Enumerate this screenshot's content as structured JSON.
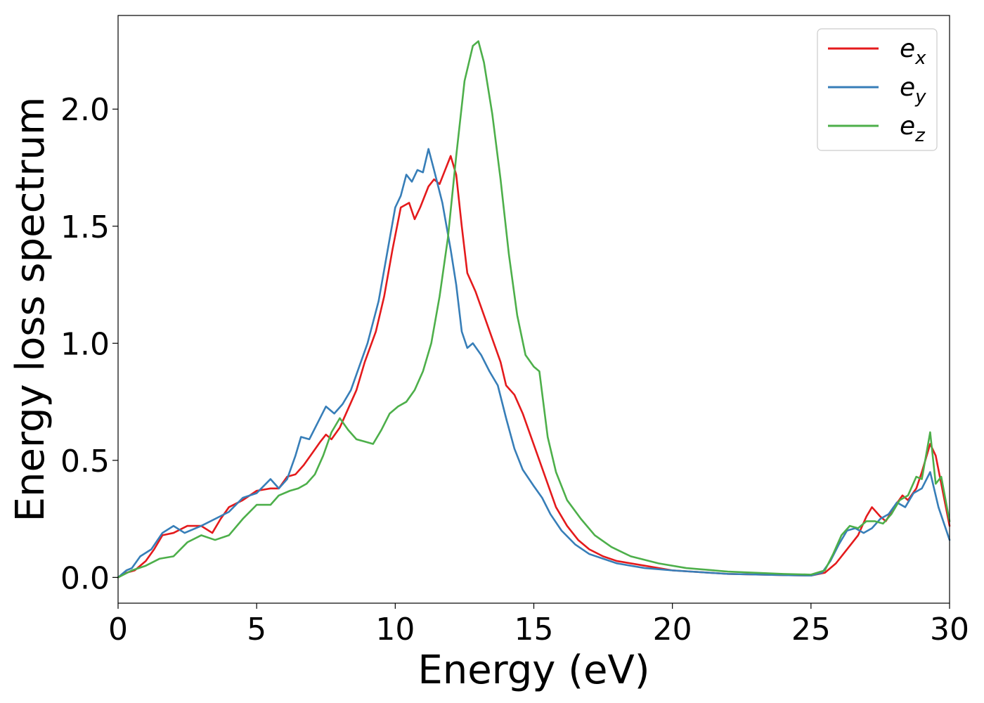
{
  "chart_data": {
    "type": "line",
    "title": "",
    "xlabel": "Energy (eV)",
    "ylabel": "Energy loss spectrum",
    "xlim": [
      0,
      30
    ],
    "ylim": [
      -0.11,
      2.4
    ],
    "xticks": [
      0,
      5,
      10,
      15,
      20,
      25,
      30
    ],
    "xtick_labels": [
      "0",
      "5",
      "10",
      "15",
      "20",
      "25",
      "30"
    ],
    "yticks": [
      0.0,
      0.5,
      1.0,
      1.5,
      2.0
    ],
    "ytick_labels": [
      "0.0",
      "0.5",
      "1.0",
      "1.5",
      "2.0"
    ],
    "grid": false,
    "legend_position": "top-right",
    "series": [
      {
        "name": "e_x",
        "label_base": "e",
        "label_sub": "x",
        "color": "#e41a1c",
        "points": [
          [
            0,
            0.0
          ],
          [
            0.3,
            0.02
          ],
          [
            0.6,
            0.03
          ],
          [
            1.0,
            0.07
          ],
          [
            1.3,
            0.12
          ],
          [
            1.6,
            0.18
          ],
          [
            2.0,
            0.19
          ],
          [
            2.5,
            0.22
          ],
          [
            3.0,
            0.22
          ],
          [
            3.4,
            0.19
          ],
          [
            3.7,
            0.25
          ],
          [
            4.0,
            0.3
          ],
          [
            4.5,
            0.33
          ],
          [
            5.0,
            0.37
          ],
          [
            5.5,
            0.38
          ],
          [
            5.8,
            0.38
          ],
          [
            6.1,
            0.43
          ],
          [
            6.4,
            0.44
          ],
          [
            6.7,
            0.48
          ],
          [
            7.0,
            0.53
          ],
          [
            7.3,
            0.58
          ],
          [
            7.5,
            0.61
          ],
          [
            7.7,
            0.59
          ],
          [
            8.0,
            0.64
          ],
          [
            8.3,
            0.72
          ],
          [
            8.6,
            0.8
          ],
          [
            8.9,
            0.92
          ],
          [
            9.3,
            1.05
          ],
          [
            9.6,
            1.2
          ],
          [
            9.9,
            1.4
          ],
          [
            10.2,
            1.58
          ],
          [
            10.5,
            1.6
          ],
          [
            10.7,
            1.53
          ],
          [
            10.9,
            1.58
          ],
          [
            11.2,
            1.67
          ],
          [
            11.4,
            1.7
          ],
          [
            11.6,
            1.68
          ],
          [
            11.8,
            1.74
          ],
          [
            12.0,
            1.8
          ],
          [
            12.2,
            1.72
          ],
          [
            12.4,
            1.5
          ],
          [
            12.6,
            1.3
          ],
          [
            12.9,
            1.22
          ],
          [
            13.2,
            1.12
          ],
          [
            13.5,
            1.02
          ],
          [
            13.8,
            0.92
          ],
          [
            14.0,
            0.82
          ],
          [
            14.3,
            0.78
          ],
          [
            14.6,
            0.7
          ],
          [
            14.9,
            0.6
          ],
          [
            15.2,
            0.5
          ],
          [
            15.5,
            0.4
          ],
          [
            15.8,
            0.3
          ],
          [
            16.2,
            0.22
          ],
          [
            16.6,
            0.16
          ],
          [
            17.0,
            0.12
          ],
          [
            17.5,
            0.09
          ],
          [
            18.0,
            0.07
          ],
          [
            19.0,
            0.05
          ],
          [
            20.0,
            0.03
          ],
          [
            22.0,
            0.015
          ],
          [
            24.0,
            0.01
          ],
          [
            25.0,
            0.008
          ],
          [
            25.5,
            0.02
          ],
          [
            25.9,
            0.06
          ],
          [
            26.3,
            0.12
          ],
          [
            26.7,
            0.18
          ],
          [
            27.0,
            0.26
          ],
          [
            27.2,
            0.3
          ],
          [
            27.5,
            0.26
          ],
          [
            27.7,
            0.24
          ],
          [
            28.0,
            0.3
          ],
          [
            28.3,
            0.35
          ],
          [
            28.5,
            0.33
          ],
          [
            28.8,
            0.38
          ],
          [
            29.0,
            0.45
          ],
          [
            29.3,
            0.57
          ],
          [
            29.5,
            0.52
          ],
          [
            29.7,
            0.4
          ],
          [
            30.0,
            0.22
          ]
        ]
      },
      {
        "name": "e_y",
        "label_base": "e",
        "label_sub": "y",
        "color": "#377eb8",
        "points": [
          [
            0,
            0.0
          ],
          [
            0.3,
            0.03
          ],
          [
            0.5,
            0.04
          ],
          [
            0.8,
            0.09
          ],
          [
            1.2,
            0.12
          ],
          [
            1.6,
            0.19
          ],
          [
            2.0,
            0.22
          ],
          [
            2.4,
            0.19
          ],
          [
            3.0,
            0.22
          ],
          [
            3.5,
            0.25
          ],
          [
            4.0,
            0.28
          ],
          [
            4.5,
            0.34
          ],
          [
            5.0,
            0.36
          ],
          [
            5.5,
            0.42
          ],
          [
            5.8,
            0.38
          ],
          [
            6.1,
            0.42
          ],
          [
            6.4,
            0.52
          ],
          [
            6.6,
            0.6
          ],
          [
            6.9,
            0.59
          ],
          [
            7.2,
            0.66
          ],
          [
            7.5,
            0.73
          ],
          [
            7.8,
            0.7
          ],
          [
            8.1,
            0.74
          ],
          [
            8.4,
            0.8
          ],
          [
            8.7,
            0.9
          ],
          [
            9.0,
            1.0
          ],
          [
            9.4,
            1.18
          ],
          [
            9.7,
            1.38
          ],
          [
            10.0,
            1.58
          ],
          [
            10.2,
            1.63
          ],
          [
            10.4,
            1.72
          ],
          [
            10.6,
            1.69
          ],
          [
            10.8,
            1.74
          ],
          [
            11.0,
            1.73
          ],
          [
            11.2,
            1.83
          ],
          [
            11.4,
            1.74
          ],
          [
            11.7,
            1.6
          ],
          [
            12.0,
            1.4
          ],
          [
            12.2,
            1.25
          ],
          [
            12.4,
            1.05
          ],
          [
            12.6,
            0.98
          ],
          [
            12.8,
            1.0
          ],
          [
            13.1,
            0.95
          ],
          [
            13.4,
            0.88
          ],
          [
            13.7,
            0.82
          ],
          [
            14.0,
            0.68
          ],
          [
            14.3,
            0.55
          ],
          [
            14.6,
            0.46
          ],
          [
            15.0,
            0.39
          ],
          [
            15.3,
            0.34
          ],
          [
            15.6,
            0.27
          ],
          [
            16.0,
            0.2
          ],
          [
            16.5,
            0.14
          ],
          [
            17.0,
            0.1
          ],
          [
            17.5,
            0.08
          ],
          [
            18.0,
            0.06
          ],
          [
            19.0,
            0.04
          ],
          [
            20.0,
            0.03
          ],
          [
            22.0,
            0.015
          ],
          [
            24.0,
            0.01
          ],
          [
            25.0,
            0.008
          ],
          [
            25.4,
            0.02
          ],
          [
            25.7,
            0.07
          ],
          [
            26.0,
            0.14
          ],
          [
            26.3,
            0.2
          ],
          [
            26.6,
            0.21
          ],
          [
            26.9,
            0.19
          ],
          [
            27.2,
            0.21
          ],
          [
            27.5,
            0.25
          ],
          [
            27.8,
            0.27
          ],
          [
            28.1,
            0.32
          ],
          [
            28.4,
            0.3
          ],
          [
            28.7,
            0.36
          ],
          [
            29.0,
            0.38
          ],
          [
            29.3,
            0.45
          ],
          [
            29.6,
            0.3
          ],
          [
            30.0,
            0.16
          ]
        ]
      },
      {
        "name": "e_z",
        "label_base": "e",
        "label_sub": "z",
        "color": "#4daf4a",
        "points": [
          [
            0,
            0.0
          ],
          [
            0.5,
            0.03
          ],
          [
            1.0,
            0.05
          ],
          [
            1.5,
            0.08
          ],
          [
            2.0,
            0.09
          ],
          [
            2.5,
            0.15
          ],
          [
            3.0,
            0.18
          ],
          [
            3.5,
            0.16
          ],
          [
            4.0,
            0.18
          ],
          [
            4.5,
            0.25
          ],
          [
            5.0,
            0.31
          ],
          [
            5.5,
            0.31
          ],
          [
            5.8,
            0.35
          ],
          [
            6.2,
            0.37
          ],
          [
            6.5,
            0.38
          ],
          [
            6.8,
            0.4
          ],
          [
            7.1,
            0.44
          ],
          [
            7.4,
            0.52
          ],
          [
            7.7,
            0.62
          ],
          [
            8.0,
            0.68
          ],
          [
            8.3,
            0.63
          ],
          [
            8.6,
            0.59
          ],
          [
            8.9,
            0.58
          ],
          [
            9.2,
            0.57
          ],
          [
            9.5,
            0.63
          ],
          [
            9.8,
            0.7
          ],
          [
            10.1,
            0.73
          ],
          [
            10.4,
            0.75
          ],
          [
            10.7,
            0.8
          ],
          [
            11.0,
            0.88
          ],
          [
            11.3,
            1.0
          ],
          [
            11.6,
            1.2
          ],
          [
            11.9,
            1.45
          ],
          [
            12.2,
            1.8
          ],
          [
            12.5,
            2.12
          ],
          [
            12.8,
            2.27
          ],
          [
            13.0,
            2.29
          ],
          [
            13.2,
            2.2
          ],
          [
            13.5,
            1.98
          ],
          [
            13.8,
            1.7
          ],
          [
            14.1,
            1.38
          ],
          [
            14.4,
            1.12
          ],
          [
            14.7,
            0.95
          ],
          [
            15.0,
            0.9
          ],
          [
            15.2,
            0.88
          ],
          [
            15.5,
            0.6
          ],
          [
            15.8,
            0.45
          ],
          [
            16.2,
            0.33
          ],
          [
            16.7,
            0.25
          ],
          [
            17.2,
            0.18
          ],
          [
            17.8,
            0.13
          ],
          [
            18.5,
            0.09
          ],
          [
            19.5,
            0.06
          ],
          [
            20.5,
            0.04
          ],
          [
            22.0,
            0.025
          ],
          [
            24.0,
            0.015
          ],
          [
            25.0,
            0.012
          ],
          [
            25.5,
            0.03
          ],
          [
            25.8,
            0.1
          ],
          [
            26.1,
            0.18
          ],
          [
            26.4,
            0.22
          ],
          [
            26.7,
            0.21
          ],
          [
            27.0,
            0.24
          ],
          [
            27.3,
            0.24
          ],
          [
            27.6,
            0.23
          ],
          [
            27.9,
            0.27
          ],
          [
            28.2,
            0.33
          ],
          [
            28.5,
            0.35
          ],
          [
            28.8,
            0.43
          ],
          [
            29.0,
            0.42
          ],
          [
            29.3,
            0.62
          ],
          [
            29.5,
            0.4
          ],
          [
            29.7,
            0.43
          ],
          [
            30.0,
            0.24
          ]
        ]
      }
    ]
  }
}
